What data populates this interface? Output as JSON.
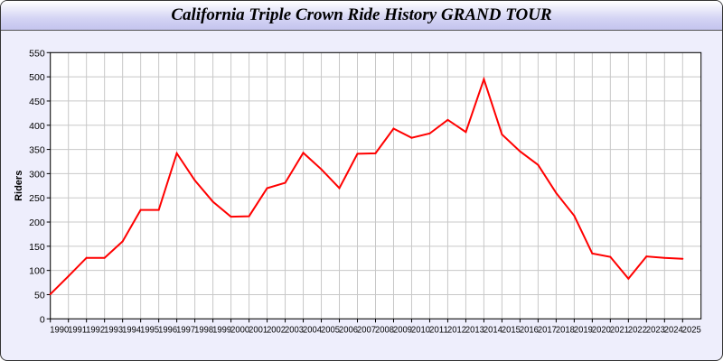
{
  "chart_data": {
    "type": "line",
    "title": "California Triple Crown Ride History GRAND TOUR",
    "xlabel": "",
    "ylabel": "Riders",
    "ylim": [
      0,
      550
    ],
    "yticks": [
      0,
      50,
      100,
      150,
      200,
      250,
      300,
      350,
      400,
      450,
      500,
      550
    ],
    "grid": true,
    "line_color": "#ff0000",
    "x": [
      "1990",
      "1991",
      "1992",
      "1993",
      "1994",
      "1995",
      "1996",
      "1997",
      "1998",
      "1999",
      "2000",
      "2001",
      "2002",
      "2003",
      "2004",
      "2005",
      "2006",
      "2007",
      "2008",
      "2009",
      "2010",
      "2011",
      "2012",
      "2013",
      "2014",
      "2015",
      "2016",
      "2017",
      "2018",
      "2019",
      "2020",
      "2021",
      "2022",
      "2023",
      "2024",
      "2025"
    ],
    "values": [
      51,
      88,
      126,
      126,
      160,
      225,
      225,
      342,
      286,
      242,
      211,
      212,
      270,
      281,
      343,
      309,
      270,
      341,
      342,
      393,
      374,
      383,
      411,
      386,
      495,
      381,
      346,
      318,
      260,
      213,
      135,
      128,
      83,
      129,
      126,
      124
    ]
  }
}
